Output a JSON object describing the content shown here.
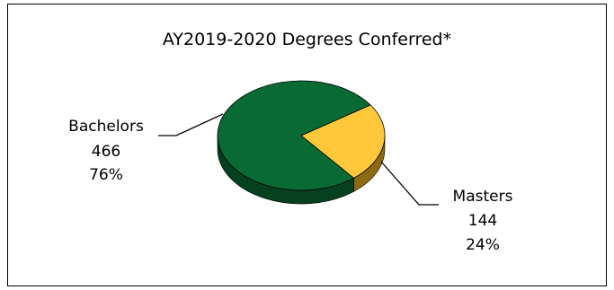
{
  "chart_data": {
    "type": "pie",
    "title": "AY2019-2020 Degrees Conferred*",
    "slices": [
      {
        "label": "Bachelors",
        "value": 466,
        "percent": "76%",
        "color": "#0a6a33",
        "side_color": "#06411f"
      },
      {
        "label": "Masters",
        "value": 144,
        "percent": "24%",
        "color": "#ffc83b",
        "side_color": "#8c6a12"
      }
    ]
  }
}
